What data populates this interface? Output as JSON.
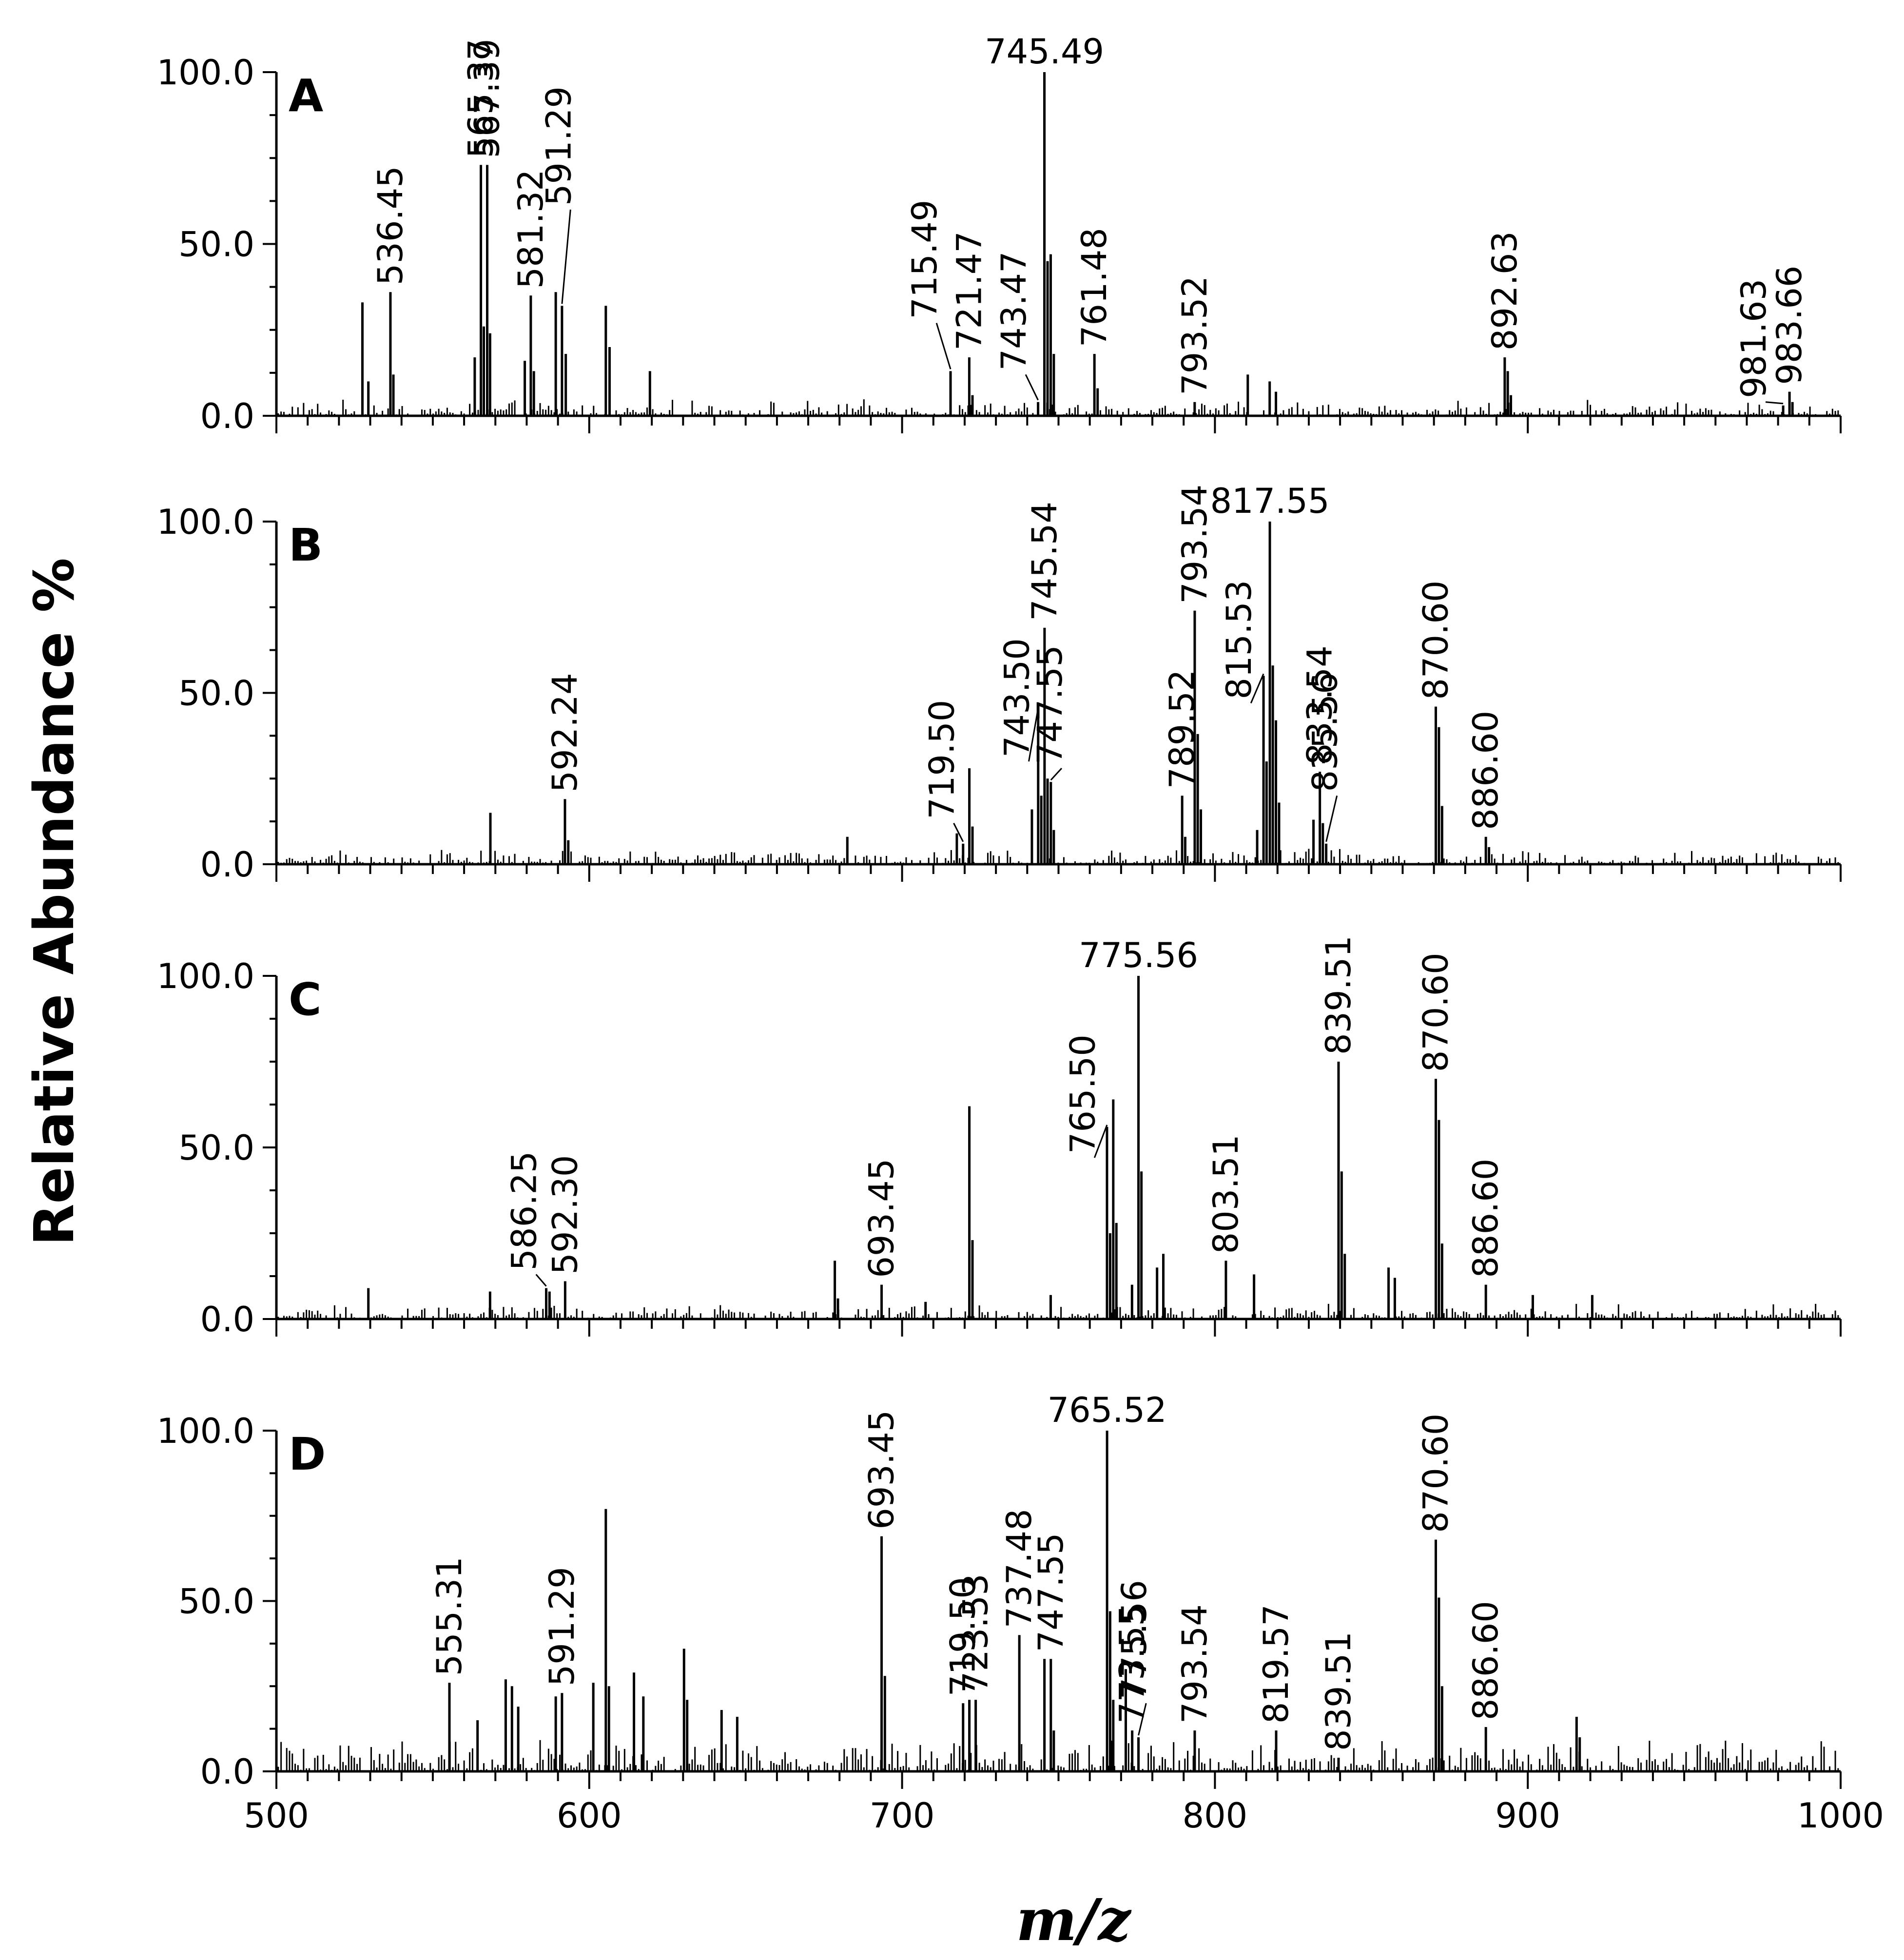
{
  "chart_data": {
    "type": "bar",
    "title": "",
    "xlabel": "m/z",
    "ylabel": "Relative Abundance %",
    "xlim": [
      500,
      1000
    ],
    "ylim": [
      0,
      100
    ],
    "x_ticks": [
      "500",
      "600",
      "700",
      "800",
      "900",
      "1000"
    ],
    "y_ticks": [
      "0.0",
      "50.0",
      "100.0"
    ],
    "panels": [
      {
        "letter": "A",
        "peaks": [
          {
            "mz": 527.5,
            "value": 33
          },
          {
            "mz": 529.4,
            "value": 10
          },
          {
            "mz": 536.45,
            "value": 36,
            "label": "536.45"
          },
          {
            "mz": 537.4,
            "value": 12
          },
          {
            "mz": 563.4,
            "value": 17
          },
          {
            "mz": 565.37,
            "value": 73,
            "label": "565.37"
          },
          {
            "mz": 566.3,
            "value": 26
          },
          {
            "mz": 567.39,
            "value": 73,
            "label": "567.39"
          },
          {
            "mz": 568.3,
            "value": 24
          },
          {
            "mz": 579.4,
            "value": 16
          },
          {
            "mz": 581.32,
            "value": 35,
            "label": "581.32"
          },
          {
            "mz": 582.3,
            "value": 13
          },
          {
            "mz": 589.3,
            "value": 36
          },
          {
            "mz": 591.29,
            "value": 32,
            "label": "591.29",
            "lx": 594,
            "ly": 60
          },
          {
            "mz": 592.5,
            "value": 18
          },
          {
            "mz": 605.3,
            "value": 32
          },
          {
            "mz": 606.5,
            "value": 20
          },
          {
            "mz": 619.4,
            "value": 13
          },
          {
            "mz": 715.49,
            "value": 13,
            "label": "715.49",
            "lx": 711,
            "ly": 27
          },
          {
            "mz": 721.47,
            "value": 17,
            "label": "721.47"
          },
          {
            "mz": 722.5,
            "value": 6
          },
          {
            "mz": 743.47,
            "value": 4,
            "label": "743.47",
            "lx": 739.5,
            "ly": 12
          },
          {
            "mz": 745.49,
            "value": 100,
            "label": "745.49"
          },
          {
            "mz": 746.5,
            "value": 45
          },
          {
            "mz": 747.5,
            "value": 47
          },
          {
            "mz": 748.5,
            "value": 18
          },
          {
            "mz": 761.48,
            "value": 18,
            "label": "761.48"
          },
          {
            "mz": 762.5,
            "value": 8
          },
          {
            "mz": 793.52,
            "value": 4,
            "label": "793.52"
          },
          {
            "mz": 810.5,
            "value": 12
          },
          {
            "mz": 817.5,
            "value": 10
          },
          {
            "mz": 819.5,
            "value": 7
          },
          {
            "mz": 892.63,
            "value": 17,
            "label": "892.63"
          },
          {
            "mz": 893.6,
            "value": 13
          },
          {
            "mz": 894.6,
            "value": 6
          },
          {
            "mz": 981.63,
            "value": 3,
            "label": "981.63",
            "lx": 976,
            "ly": 4
          },
          {
            "mz": 983.66,
            "value": 7,
            "label": "983.66"
          },
          {
            "mz": 984.6,
            "value": 4
          }
        ]
      },
      {
        "letter": "B",
        "peaks": [
          {
            "mz": 568.4,
            "value": 15
          },
          {
            "mz": 592.24,
            "value": 19,
            "label": "592.24"
          },
          {
            "mz": 593.3,
            "value": 7
          },
          {
            "mz": 682.5,
            "value": 8
          },
          {
            "mz": 717.5,
            "value": 9
          },
          {
            "mz": 719.5,
            "value": 6,
            "label": "719.50",
            "lx": 716.5,
            "ly": 12
          },
          {
            "mz": 721.5,
            "value": 28
          },
          {
            "mz": 722.5,
            "value": 11
          },
          {
            "mz": 741.5,
            "value": 16
          },
          {
            "mz": 743.5,
            "value": 45,
            "label": "743.50",
            "lx": 740.5,
            "ly": 30
          },
          {
            "mz": 744.5,
            "value": 20
          },
          {
            "mz": 745.54,
            "value": 69,
            "label": "745.54"
          },
          {
            "mz": 746.5,
            "value": 25
          },
          {
            "mz": 747.55,
            "value": 24,
            "label": "747.55",
            "lx": 751,
            "ly": 28
          },
          {
            "mz": 748.5,
            "value": 10
          },
          {
            "mz": 789.52,
            "value": 20,
            "label": "789.52"
          },
          {
            "mz": 790.5,
            "value": 8
          },
          {
            "mz": 793.54,
            "value": 74,
            "label": "793.54"
          },
          {
            "mz": 794.5,
            "value": 38
          },
          {
            "mz": 795.5,
            "value": 16
          },
          {
            "mz": 813.5,
            "value": 10
          },
          {
            "mz": 815.53,
            "value": 55,
            "label": "815.53",
            "lx": 811.5,
            "ly": 47
          },
          {
            "mz": 816.5,
            "value": 30
          },
          {
            "mz": 817.55,
            "value": 100,
            "label": "817.55"
          },
          {
            "mz": 818.5,
            "value": 58
          },
          {
            "mz": 819.5,
            "value": 42
          },
          {
            "mz": 820.5,
            "value": 18
          },
          {
            "mz": 831.5,
            "value": 13
          },
          {
            "mz": 833.54,
            "value": 27,
            "label": "833.54"
          },
          {
            "mz": 834.5,
            "value": 12
          },
          {
            "mz": 835.56,
            "value": 6,
            "label": "835.56",
            "lx": 839,
            "ly": 20
          },
          {
            "mz": 870.6,
            "value": 46,
            "label": "870.60"
          },
          {
            "mz": 871.6,
            "value": 40
          },
          {
            "mz": 872.6,
            "value": 17
          },
          {
            "mz": 886.6,
            "value": 8,
            "label": "886.60"
          },
          {
            "mz": 887.6,
            "value": 5
          }
        ]
      },
      {
        "letter": "C",
        "peaks": [
          {
            "mz": 529.4,
            "value": 9
          },
          {
            "mz": 568.3,
            "value": 8
          },
          {
            "mz": 586.25,
            "value": 9,
            "label": "586.25",
            "lx": 583,
            "ly": 13
          },
          {
            "mz": 587.3,
            "value": 8
          },
          {
            "mz": 592.3,
            "value": 11,
            "label": "592.30"
          },
          {
            "mz": 678.5,
            "value": 17
          },
          {
            "mz": 679.5,
            "value": 6
          },
          {
            "mz": 693.45,
            "value": 10,
            "label": "693.45"
          },
          {
            "mz": 707.5,
            "value": 5
          },
          {
            "mz": 721.5,
            "value": 62
          },
          {
            "mz": 722.5,
            "value": 23
          },
          {
            "mz": 747.5,
            "value": 7
          },
          {
            "mz": 765.5,
            "value": 56,
            "label": "765.50",
            "lx": 761.5,
            "ly": 47
          },
          {
            "mz": 766.5,
            "value": 25
          },
          {
            "mz": 767.5,
            "value": 64
          },
          {
            "mz": 768.5,
            "value": 28
          },
          {
            "mz": 773.5,
            "value": 10
          },
          {
            "mz": 775.56,
            "value": 100,
            "label": "775.56"
          },
          {
            "mz": 776.5,
            "value": 43
          },
          {
            "mz": 781.5,
            "value": 15
          },
          {
            "mz": 783.5,
            "value": 19
          },
          {
            "mz": 803.51,
            "value": 17,
            "label": "803.51"
          },
          {
            "mz": 812.5,
            "value": 13
          },
          {
            "mz": 839.51,
            "value": 75,
            "label": "839.51"
          },
          {
            "mz": 840.5,
            "value": 43
          },
          {
            "mz": 841.5,
            "value": 19
          },
          {
            "mz": 855.5,
            "value": 15
          },
          {
            "mz": 857.5,
            "value": 12
          },
          {
            "mz": 870.6,
            "value": 70,
            "label": "870.60"
          },
          {
            "mz": 871.6,
            "value": 58
          },
          {
            "mz": 872.6,
            "value": 22
          },
          {
            "mz": 886.6,
            "value": 10,
            "label": "886.60"
          },
          {
            "mz": 901.6,
            "value": 7
          },
          {
            "mz": 920.6,
            "value": 7
          }
        ]
      },
      {
        "letter": "D",
        "peaks": [
          {
            "mz": 555.31,
            "value": 26,
            "label": "555.31"
          },
          {
            "mz": 564.3,
            "value": 15
          },
          {
            "mz": 573.3,
            "value": 27
          },
          {
            "mz": 575.3,
            "value": 25
          },
          {
            "mz": 577.3,
            "value": 19
          },
          {
            "mz": 589.3,
            "value": 22
          },
          {
            "mz": 591.29,
            "value": 23,
            "label": "591.29"
          },
          {
            "mz": 601.3,
            "value": 26
          },
          {
            "mz": 605.3,
            "value": 77
          },
          {
            "mz": 606.3,
            "value": 25
          },
          {
            "mz": 614.3,
            "value": 29
          },
          {
            "mz": 617.3,
            "value": 22
          },
          {
            "mz": 630.3,
            "value": 36
          },
          {
            "mz": 631.3,
            "value": 21
          },
          {
            "mz": 642.3,
            "value": 18
          },
          {
            "mz": 647.3,
            "value": 16
          },
          {
            "mz": 693.45,
            "value": 69,
            "label": "693.45"
          },
          {
            "mz": 694.5,
            "value": 28
          },
          {
            "mz": 719.5,
            "value": 20,
            "label": "719.50"
          },
          {
            "mz": 721.5,
            "value": 21
          },
          {
            "mz": 723.53,
            "value": 21,
            "label": "723.53"
          },
          {
            "mz": 737.48,
            "value": 40,
            "label": "737.48"
          },
          {
            "mz": 745.5,
            "value": 33
          },
          {
            "mz": 747.55,
            "value": 33,
            "label": "747.55"
          },
          {
            "mz": 748.5,
            "value": 12
          },
          {
            "mz": 765.52,
            "value": 100,
            "label": "765.52"
          },
          {
            "mz": 766.5,
            "value": 47
          },
          {
            "mz": 767.5,
            "value": 21
          },
          {
            "mz": 771.5,
            "value": 30
          },
          {
            "mz": 773.55,
            "value": 12,
            "label": "773.55"
          },
          {
            "mz": 775.56,
            "value": 10,
            "label": "775.56",
            "lx": 778,
            "ly": 20
          },
          {
            "mz": 793.54,
            "value": 12,
            "label": "793.54"
          },
          {
            "mz": 819.57,
            "value": 12,
            "label": "819.57"
          },
          {
            "mz": 839.51,
            "value": 4,
            "label": "839.51"
          },
          {
            "mz": 870.6,
            "value": 68,
            "label": "870.60"
          },
          {
            "mz": 871.6,
            "value": 51
          },
          {
            "mz": 872.6,
            "value": 25
          },
          {
            "mz": 886.6,
            "value": 13,
            "label": "886.60"
          },
          {
            "mz": 915.6,
            "value": 16
          },
          {
            "mz": 916.6,
            "value": 10
          }
        ]
      }
    ]
  }
}
